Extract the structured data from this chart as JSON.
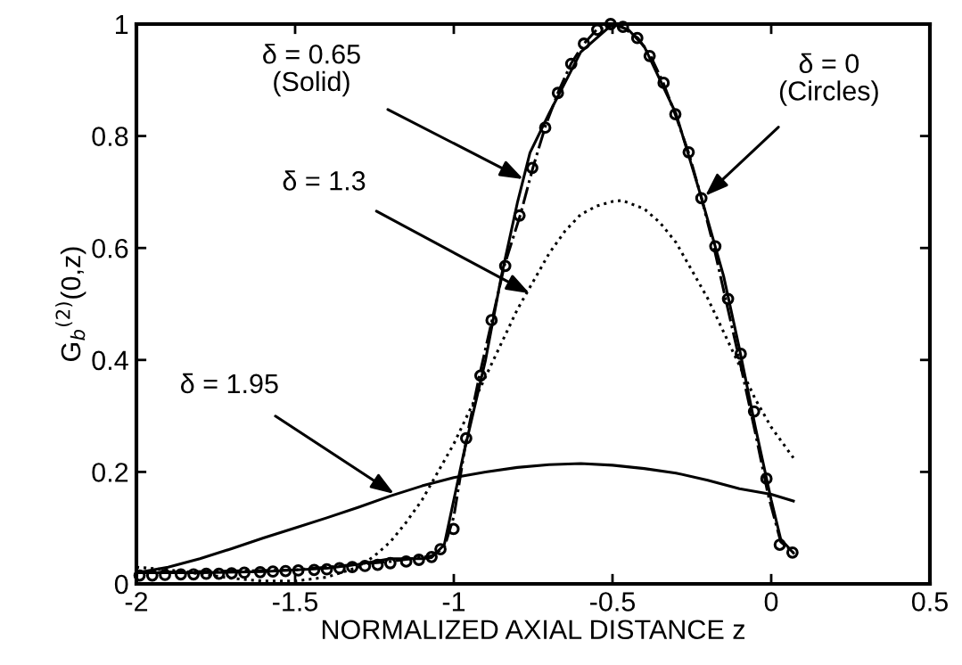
{
  "chart_data": {
    "type": "line",
    "xlabel": "NORMALIZED AXIAL DISTANCE z",
    "ylabel": "G$_{b}$$^{(2)}$(0,z)",
    "xlim": [
      -2,
      0.5
    ],
    "xticks": [
      -2,
      -1.5,
      -1,
      -0.5,
      0,
      0.5
    ],
    "ylim": [
      0,
      1
    ],
    "yticks": [
      0,
      0.2,
      0.4,
      0.6,
      0.8,
      1
    ],
    "series": [
      {
        "type": "scatter",
        "marker": "circle",
        "color": "#000000",
        "x": [
          -1.99,
          -1.95,
          -1.91,
          -1.86,
          -1.82,
          -1.78,
          -1.74,
          -1.7,
          -1.66,
          -1.61,
          -1.57,
          -1.53,
          -1.49,
          -1.44,
          -1.4,
          -1.36,
          -1.32,
          -1.28,
          -1.24,
          -1.2,
          -1.15,
          -1.11,
          -1.07,
          -1.042,
          -1.001,
          -0.961,
          -0.916,
          -0.881,
          -0.838,
          -0.793,
          -0.753,
          -0.712,
          -0.672,
          -0.63,
          -0.59,
          -0.548,
          -0.506,
          -0.467,
          -0.422,
          -0.383,
          -0.339,
          -0.302,
          -0.26,
          -0.22,
          -0.176,
          -0.136,
          -0.096,
          -0.054,
          -0.015,
          0.027,
          0.067
        ],
        "values": [
          0.015,
          0.015,
          0.016,
          0.017,
          0.017,
          0.018,
          0.018,
          0.019,
          0.02,
          0.021,
          0.022,
          0.023,
          0.024,
          0.025,
          0.026,
          0.028,
          0.03,
          0.032,
          0.034,
          0.037,
          0.04,
          0.043,
          0.048,
          0.062,
          0.098,
          0.26,
          0.372,
          0.471,
          0.568,
          0.658,
          0.743,
          0.815,
          0.877,
          0.929,
          0.965,
          0.99,
          1.0,
          0.995,
          0.975,
          0.943,
          0.895,
          0.839,
          0.771,
          0.689,
          0.603,
          0.509,
          0.411,
          0.308,
          0.188,
          0.07,
          0.056
        ]
      },
      {
        "line_style": "dashdot",
        "color": "#000000",
        "x": [
          -2,
          -1.5,
          -1.2,
          -1.07,
          -1.03,
          -1.0,
          -0.96,
          -0.92,
          -0.88,
          -0.84,
          -0.79,
          -0.75,
          -0.71,
          -0.67,
          -0.63,
          -0.59,
          -0.55,
          -0.5,
          -0.47,
          -0.42,
          -0.38,
          -0.34,
          -0.3,
          -0.26,
          -0.22,
          -0.18,
          -0.14,
          -0.1,
          -0.05,
          -0.01,
          0.03,
          0.07
        ],
        "values": [
          0.02,
          0.025,
          0.04,
          0.05,
          0.065,
          0.12,
          0.26,
          0.37,
          0.47,
          0.57,
          0.66,
          0.745,
          0.82,
          0.88,
          0.93,
          0.965,
          0.99,
          1.0,
          0.995,
          0.975,
          0.943,
          0.895,
          0.835,
          0.77,
          0.69,
          0.6,
          0.5,
          0.4,
          0.27,
          0.16,
          0.075,
          0.056
        ]
      },
      {
        "line_style": "solid",
        "color": "#000000",
        "x": [
          -2,
          -1.8,
          -1.6,
          -1.4,
          -1.3,
          -1.2,
          -1.1,
          -1.07,
          -1.03,
          -1.0,
          -0.97,
          -0.9,
          -0.85,
          -0.8,
          -0.76,
          -0.7,
          -0.6,
          -0.5,
          -0.45,
          -0.4,
          -0.3,
          -0.22,
          -0.15,
          -0.1,
          -0.05,
          0,
          0.03,
          0.07
        ],
        "values": [
          0.02,
          0.02,
          0.022,
          0.028,
          0.035,
          0.045,
          0.045,
          0.047,
          0.07,
          0.15,
          0.23,
          0.4,
          0.55,
          0.68,
          0.77,
          0.84,
          0.95,
          1.0,
          0.99,
          0.96,
          0.84,
          0.69,
          0.55,
          0.42,
          0.28,
          0.15,
          0.08,
          0.055
        ]
      },
      {
        "line_style": "dotted",
        "color": "#000000",
        "x": [
          -2,
          -1.9,
          -1.8,
          -1.7,
          -1.6,
          -1.5,
          -1.4,
          -1.3,
          -1.25,
          -1.2,
          -1.15,
          -1.1,
          -1.05,
          -1.0,
          -0.95,
          -0.9,
          -0.85,
          -0.8,
          -0.75,
          -0.7,
          -0.65,
          -0.6,
          -0.55,
          -0.5,
          -0.47,
          -0.4,
          -0.35,
          -0.3,
          -0.25,
          -0.2,
          -0.15,
          -0.1,
          -0.05,
          0,
          0.07
        ],
        "values": [
          0.03,
          0.025,
          0.018,
          0.01,
          0.005,
          0.005,
          0.012,
          0.03,
          0.05,
          0.075,
          0.11,
          0.15,
          0.2,
          0.25,
          0.31,
          0.37,
          0.43,
          0.49,
          0.54,
          0.59,
          0.63,
          0.66,
          0.675,
          0.683,
          0.685,
          0.67,
          0.645,
          0.61,
          0.56,
          0.51,
          0.45,
          0.39,
          0.33,
          0.28,
          0.225
        ]
      },
      {
        "line_style": "solid",
        "color": "#000000",
        "x": [
          -2,
          -1.9,
          -1.8,
          -1.7,
          -1.6,
          -1.5,
          -1.4,
          -1.3,
          -1.2,
          -1.1,
          -1.0,
          -0.9,
          -0.8,
          -0.7,
          -0.6,
          -0.5,
          -0.4,
          -0.3,
          -0.2,
          -0.1,
          0,
          0.07
        ],
        "values": [
          0.02,
          0.03,
          0.045,
          0.063,
          0.082,
          0.1,
          0.118,
          0.137,
          0.157,
          0.175,
          0.19,
          0.2,
          0.208,
          0.213,
          0.215,
          0.212,
          0.206,
          0.198,
          0.185,
          0.17,
          0.16,
          0.148
        ]
      }
    ],
    "annotations": [
      {
        "text": "δ = 0.65\n(Solid)",
        "x": -0.781,
        "y": 0.723
      },
      {
        "text": "δ = 0\n(Circles)",
        "x": -0.208,
        "y": 0.693
      },
      {
        "text": "δ = 1.3",
        "x": -0.761,
        "y": 0.519
      },
      {
        "text": "δ = 1.95",
        "x": -1.188,
        "y": 0.161
      }
    ]
  }
}
